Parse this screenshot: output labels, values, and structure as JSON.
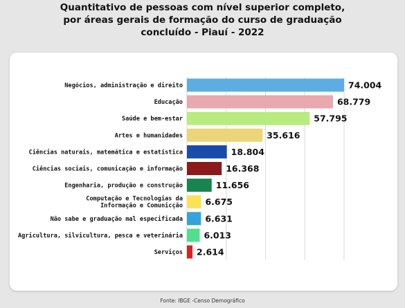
{
  "title_lines": [
    "Quantitativo de pessoas com nível superior completo,",
    "por áreas gerais de formação do curso de graduação",
    "concluído - Piauí - 2022"
  ],
  "source": "Fonte: IBGE -Censo Demográfico",
  "chart_data": {
    "type": "bar",
    "orientation": "horizontal",
    "title": "Quantitativo de pessoas com nível superior completo, por áreas gerais de formação do curso de graduação concluído - Piauí - 2022",
    "categories": [
      [
        "Negócios, administração e direito"
      ],
      [
        "Educação"
      ],
      [
        "Saúde e bem-estar"
      ],
      [
        "Artes e humanidades"
      ],
      [
        "Ciências naturais, matemática e estatística"
      ],
      [
        "Ciências sociais, comunicação e informação"
      ],
      [
        "Engenharia, produção e construção"
      ],
      [
        "Computação e Tecnologias da",
        "Informação e Comunicção"
      ],
      [
        "Não sabe e graduação mal especificada"
      ],
      [
        "Agricultura, silvicultura, pesca e veterinária"
      ],
      [
        "Serviços"
      ]
    ],
    "values": [
      74004,
      68779,
      57795,
      35616,
      18804,
      16368,
      11656,
      6675,
      6631,
      6013,
      2614
    ],
    "value_labels": [
      "74.004",
      "68.779",
      "57.795",
      "35.616",
      "18.804",
      "16.368",
      "11.656",
      "6.675",
      "6.631",
      "6.013",
      "2.614"
    ],
    "colors": [
      "#5dade2",
      "#e8a9ae",
      "#b8ec7e",
      "#ecd47a",
      "#1b4ba8",
      "#8b1a1a",
      "#18854e",
      "#fbe255",
      "#35a3dc",
      "#4fe08c",
      "#d92323"
    ],
    "xlim": [
      0,
      74004
    ],
    "grid": true
  }
}
